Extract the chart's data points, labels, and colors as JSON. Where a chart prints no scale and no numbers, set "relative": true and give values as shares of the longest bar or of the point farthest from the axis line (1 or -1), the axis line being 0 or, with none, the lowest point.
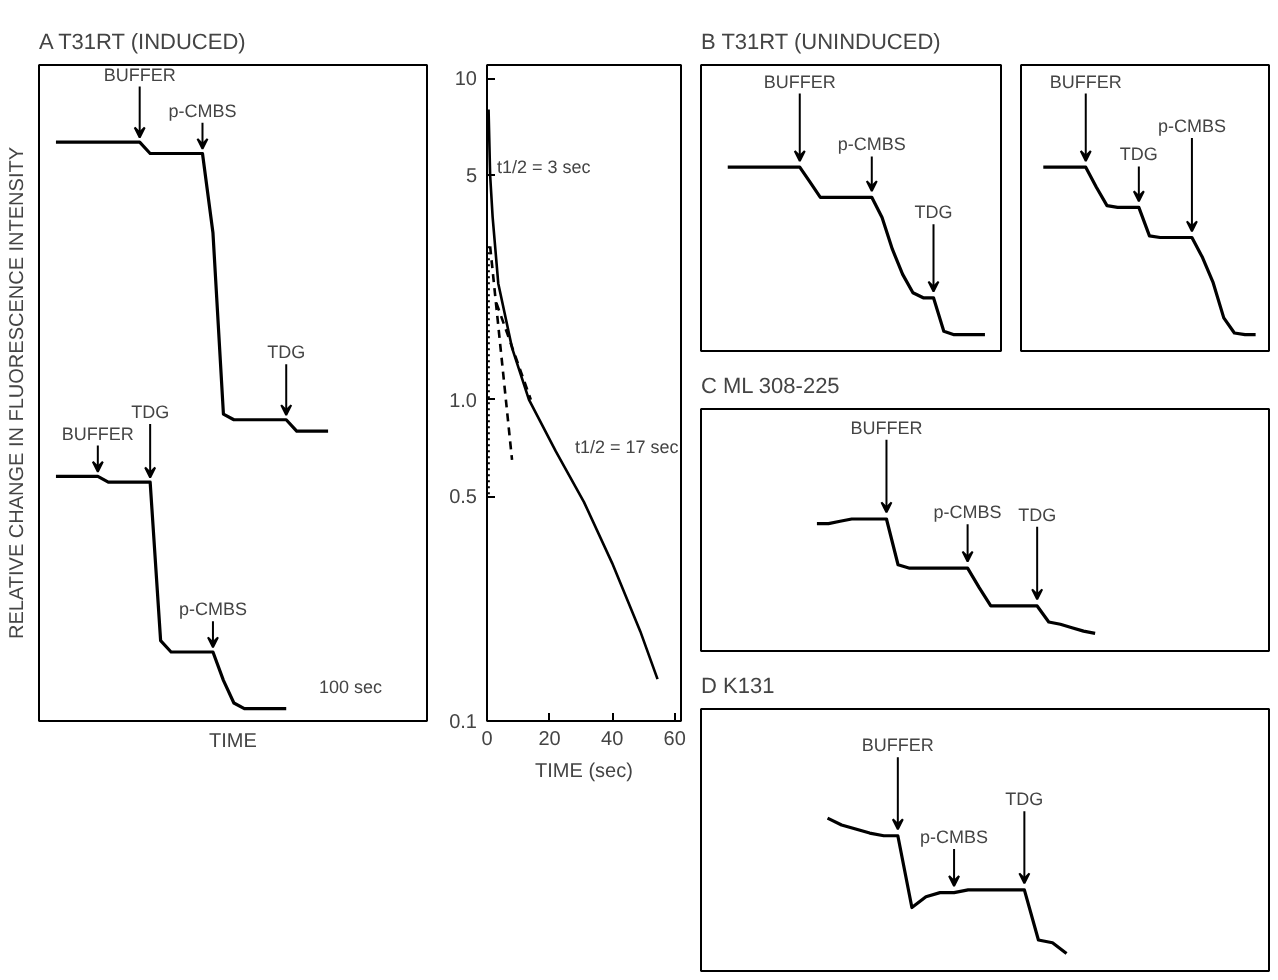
{
  "chart_data": [
    {
      "type": "line",
      "title": "A   T31RT (INDUCED)",
      "ylabel": "RELATIVE CHANGE IN FLUORESCENCE INTENSITY",
      "xlabel": "TIME",
      "relative": true,
      "categories": [
        null,
        null,
        null,
        null,
        null,
        null,
        null,
        null,
        null,
        null,
        null,
        null,
        null,
        null,
        null,
        null,
        null,
        null,
        null,
        null,
        null,
        null,
        null,
        null,
        null,
        null,
        null
      ],
      "series": [
        {
          "color": "#000000",
          "values": [
            1.0,
            1.0,
            1.0,
            1.0,
            1.0,
            1.0,
            1.0,
            1.0,
            1.0,
            0.98,
            0.98,
            0.98,
            0.98,
            0.98,
            0.98,
            0.84,
            0.52,
            0.51,
            0.51,
            0.51,
            0.51,
            0.51,
            0.51,
            0.49,
            0.49,
            0.49,
            0.49
          ]
        },
        {
          "color": "#000000",
          "values": [
            0.41,
            0.41,
            0.41,
            0.41,
            0.41,
            0.4,
            0.4,
            0.4,
            0.4,
            0.4,
            0.12,
            0.1,
            0.1,
            0.1,
            0.1,
            0.1,
            0.05,
            0.01,
            0.0,
            0.0,
            0.0,
            0.0,
            0.0,
            null,
            null,
            null,
            null
          ]
        }
      ],
      "annotations": [
        {
          "text": "BUFFER",
          "y": 1.0
        },
        {
          "text": "p-CMBS",
          "y": 0.98
        },
        {
          "text": "TDG",
          "y": 0.51
        },
        {
          "text": "BUFFER",
          "y": 0.41
        },
        {
          "text": "TDG",
          "y": 0.4
        },
        {
          "text": "p-CMBS",
          "y": 0.1
        },
        "100 sec"
      ]
    },
    {
      "type": "line",
      "xlabel": "TIME (sec)",
      "log": "y",
      "xlim": [
        0,
        62
      ],
      "ylim": [
        0.1,
        11
      ],
      "xticks": [
        0,
        20,
        40,
        60
      ],
      "yticks": [
        0.1,
        {
          "value": 0.5,
          "label": "0.5"
        },
        {
          "value": 1,
          "label": "1.0"
        },
        5,
        10
      ],
      "series": [
        {
          "color": "#000000",
          "line_style": "solid",
          "x": [
            0.5,
            1,
            1.8,
            3.6,
            8,
            13.4,
            22,
            31,
            40,
            49,
            54.5
          ],
          "values": [
            8,
            5,
            3.7,
            2.3,
            1.45,
            1.0,
            0.69,
            0.48,
            0.31,
            0.19,
            0.135
          ]
        },
        {
          "color": "#000000",
          "line_style": "dashed",
          "x": [
            1,
            8
          ],
          "values": [
            3.0,
            0.65
          ]
        },
        {
          "color": "#000000",
          "line_style": "dashed",
          "x": [
            3,
            14
          ],
          "values": [
            2.0,
            1.0
          ]
        },
        {
          "color": "#000000",
          "line_style": "dotted",
          "x": [
            0.5,
            0.5
          ],
          "values": [
            3.0,
            0.5
          ]
        }
      ],
      "annotations": [
        "t1/2 = 3 sec",
        "t1/2 = 17 sec"
      ]
    },
    {
      "type": "line",
      "title": "B  T31RT (UNINDUCED)",
      "relative": true,
      "categories": [
        null,
        null,
        null,
        null,
        null,
        null,
        null,
        null,
        null,
        null,
        null,
        null,
        null,
        null,
        null,
        null,
        null,
        null,
        null,
        null,
        null,
        null,
        null,
        null,
        null,
        null
      ],
      "series": [
        {
          "color": "#000000",
          "values": [
            1.0,
            1.0,
            1.0,
            1.0,
            1.0,
            1.0,
            1.0,
            1.0,
            0.91,
            0.82,
            0.82,
            0.82,
            0.82,
            0.82,
            0.82,
            0.7,
            0.51,
            0.36,
            0.25,
            0.22,
            0.22,
            0.02,
            0.0,
            0.0,
            0.0,
            0.0
          ]
        }
      ],
      "annotations": [
        {
          "text": "BUFFER",
          "y": 1.0
        },
        {
          "text": "p-CMBS",
          "y": 0.82
        },
        {
          "text": "TDG",
          "y": 0.22
        }
      ]
    },
    {
      "type": "line",
      "relative": true,
      "categories": [
        null,
        null,
        null,
        null,
        null,
        null,
        null,
        null,
        null,
        null,
        null,
        null,
        null,
        null,
        null,
        null,
        null,
        null,
        null,
        null,
        null
      ],
      "series": [
        {
          "color": "#000000",
          "values": [
            1.0,
            1.0,
            1.0,
            1.0,
            1.0,
            0.88,
            0.77,
            0.76,
            0.76,
            0.76,
            0.59,
            0.58,
            0.58,
            0.58,
            0.58,
            0.46,
            0.31,
            0.1,
            0.01,
            0.0,
            0.0
          ]
        }
      ],
      "annotations": [
        {
          "text": "BUFFER",
          "y": 1.0
        },
        {
          "text": "TDG",
          "y": 0.76
        },
        {
          "text": "p-CMBS",
          "y": 0.58
        }
      ]
    },
    {
      "type": "line",
      "title": "C  ML 308-225",
      "relative": true,
      "categories": [
        null,
        null,
        null,
        null,
        null,
        null,
        null,
        null,
        null,
        null,
        null,
        null,
        null,
        null,
        null,
        null,
        null,
        null,
        null,
        null,
        null,
        null,
        null,
        null,
        null
      ],
      "series": [
        {
          "color": "#000000",
          "values": [
            0.96,
            0.96,
            0.98,
            1.0,
            1.0,
            1.0,
            1.0,
            0.6,
            0.57,
            0.57,
            0.57,
            0.57,
            0.57,
            0.57,
            0.4,
            0.24,
            0.24,
            0.24,
            0.24,
            0.24,
            0.1,
            0.08,
            0.05,
            0.02,
            0.0
          ]
        }
      ],
      "annotations": [
        {
          "text": "BUFFER",
          "y": 1.0
        },
        {
          "text": "p-CMBS",
          "y": 0.57
        },
        {
          "text": "TDG",
          "y": 0.24
        }
      ]
    },
    {
      "type": "line",
      "title": "D  K131",
      "relative": true,
      "categories": [
        null,
        null,
        null,
        null,
        null,
        null,
        null,
        null,
        null,
        null,
        null,
        null,
        null,
        null,
        null,
        null,
        null,
        null
      ],
      "series": [
        {
          "color": "#000000",
          "values": [
            1.0,
            0.95,
            0.92,
            0.89,
            0.87,
            0.87,
            0.34,
            0.42,
            0.45,
            0.45,
            0.47,
            0.47,
            0.47,
            0.47,
            0.47,
            0.1,
            0.08,
            0.0
          ]
        }
      ],
      "annotations": [
        {
          "text": "BUFFER",
          "y": 0.87
        },
        {
          "text": "p-CMBS",
          "y": 0.45
        },
        {
          "text": "TDG",
          "y": 0.47
        }
      ]
    }
  ]
}
